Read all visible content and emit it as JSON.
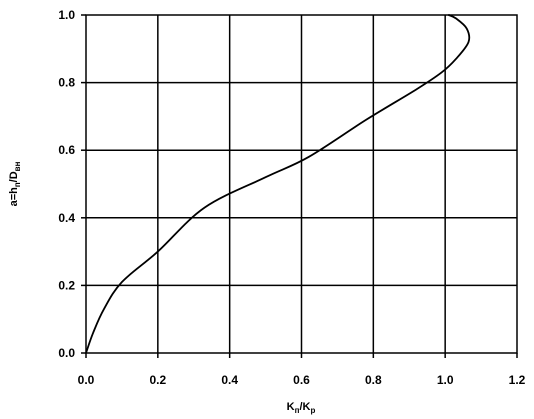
{
  "chart_data": {
    "type": "line",
    "title": "",
    "xlabel": {
      "main1": "K",
      "sub1": "п",
      "sep": "/K",
      "sub2": "р"
    },
    "ylabel": {
      "main1": "a=h",
      "sub1": "п",
      "sep": "/D",
      "sub2": "вн"
    },
    "xlim": [
      0,
      1.2
    ],
    "ylim": [
      0,
      1.0
    ],
    "grid": true,
    "xticks": [
      "0.0",
      "0.2",
      "0.4",
      "0.6",
      "0.8",
      "1.0",
      "1.2"
    ],
    "yticks": [
      "0.0",
      "0.2",
      "0.4",
      "0.6",
      "0.8",
      "1.0"
    ],
    "xtick_values": [
      0,
      0.2,
      0.4,
      0.6,
      0.8,
      1.0,
      1.2
    ],
    "ytick_values": [
      0,
      0.2,
      0.4,
      0.6,
      0.8,
      1.0
    ],
    "series": [
      {
        "color": "#000000",
        "points": [
          [
            0.0,
            0.0
          ],
          [
            0.02,
            0.06
          ],
          [
            0.05,
            0.13
          ],
          [
            0.1,
            0.21
          ],
          [
            0.2,
            0.3
          ],
          [
            0.33,
            0.43
          ],
          [
            0.5,
            0.52
          ],
          [
            0.62,
            0.58
          ],
          [
            0.78,
            0.69
          ],
          [
            0.92,
            0.78
          ],
          [
            0.99,
            0.83
          ],
          [
            1.03,
            0.87
          ],
          [
            1.065,
            0.92
          ],
          [
            1.06,
            0.96
          ],
          [
            1.03,
            0.99
          ],
          [
            1.01,
            1.0
          ]
        ]
      }
    ]
  }
}
